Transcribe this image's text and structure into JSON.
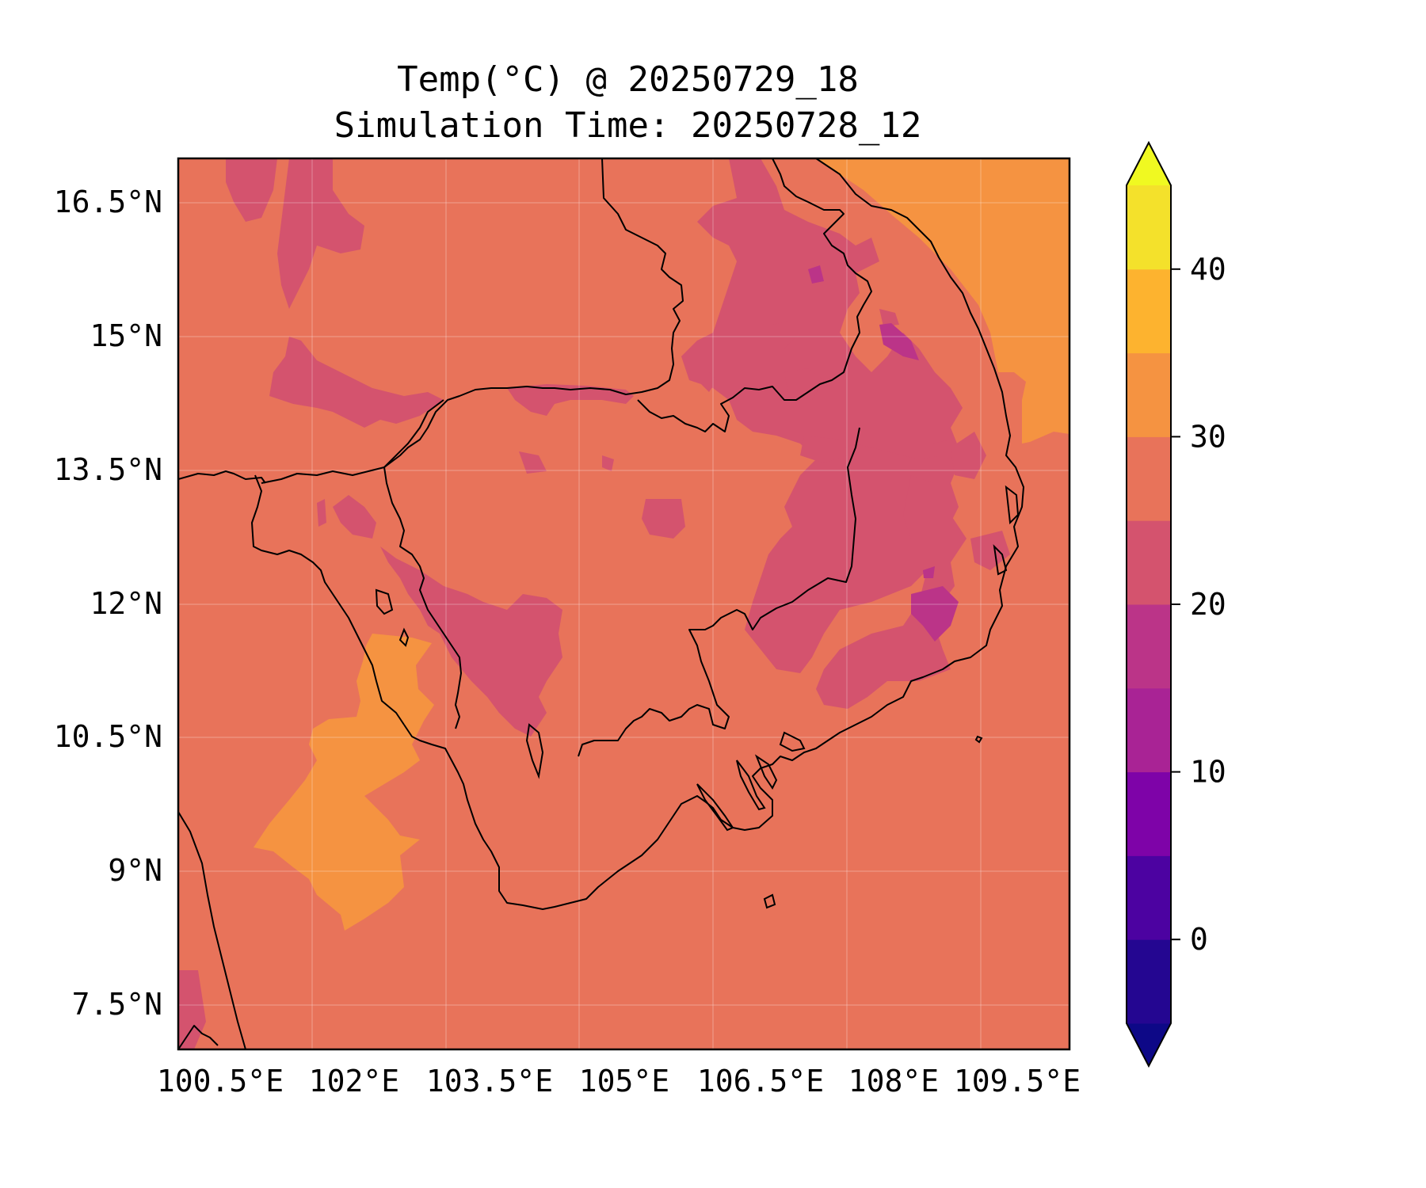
{
  "title": "Temp(°C) @ 20250729_18",
  "subtitle": "Simulation Time: 20250728_12",
  "map": {
    "lon_range": [
      100.5,
      110.5
    ],
    "lat_range": [
      7.0,
      17.0
    ],
    "x_ticks": [
      "100.5°E",
      "102°E",
      "103.5°E",
      "105°E",
      "106.5°E",
      "108°E",
      "109.5°E"
    ],
    "y_ticks": [
      "16.5°N",
      "15°N",
      "13.5°N",
      "12°N",
      "10.5°N",
      "9°N",
      "7.5°N"
    ],
    "background_band": "25-30 °C",
    "colors": {
      "band_20_25": "#d4536e",
      "band_25_30": "#e8735a",
      "band_30_35": "#f59341"
    }
  },
  "colorbar": {
    "ticks": [
      "0",
      "10",
      "20",
      "30",
      "40"
    ],
    "levels": [
      -5,
      0,
      5,
      10,
      15,
      20,
      25,
      30,
      35,
      40,
      45
    ],
    "colors": [
      "#240691",
      "#4c02a1",
      "#7e03a8",
      "#a92395",
      "#bb3488",
      "#d4536e",
      "#e8735a",
      "#f59341",
      "#fdb32f",
      "#f4e12b"
    ],
    "under_color": "#0d0887",
    "over_color": "#f0f921",
    "extend": "both"
  }
}
